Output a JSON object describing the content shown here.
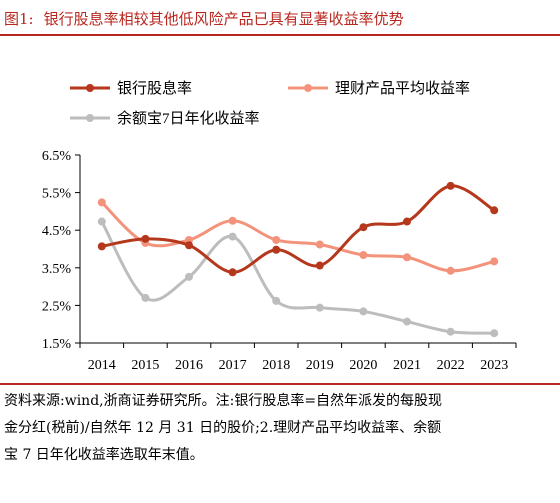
{
  "title": {
    "label": "图1:",
    "text": "银行股息率相较其他低风险产品已具有显著收益率优势"
  },
  "source": {
    "line1": "资料来源:wind,浙商证券研究所。注:银行股息率=自然年派发的每股现",
    "line2": "金分红(税前)/自然年 12 月 31 日的股价;2.理财产品平均收益率、余额",
    "line3": "宝 7 日年化收益率选取年末值。"
  },
  "chart_data": {
    "type": "line",
    "smooth": true,
    "x": [
      "2014",
      "2015",
      "2016",
      "2017",
      "2018",
      "2019",
      "2020",
      "2021",
      "2022",
      "2023"
    ],
    "yticks": [
      "6.5%",
      "5.5%",
      "4.5%",
      "3.5%",
      "2.5%",
      "1.5%"
    ],
    "ylim": [
      1.5,
      6.5
    ],
    "grid": false,
    "legend_position": "top",
    "series": [
      {
        "name": "银行股息率",
        "color": "#b5371c",
        "values": [
          4.07,
          4.27,
          4.1,
          3.38,
          3.98,
          3.56,
          4.58,
          4.73,
          5.68,
          5.03
        ]
      },
      {
        "name": "理财产品平均收益率",
        "color": "#f4937c",
        "values": [
          5.24,
          4.16,
          4.24,
          4.75,
          4.24,
          4.12,
          3.84,
          3.78,
          3.42,
          3.67
        ]
      },
      {
        "name": "余额宝7日年化收益率",
        "color": "#bdbdbd",
        "values": [
          4.73,
          2.7,
          3.26,
          4.33,
          2.62,
          2.44,
          2.34,
          2.07,
          1.8,
          1.76
        ]
      }
    ]
  }
}
